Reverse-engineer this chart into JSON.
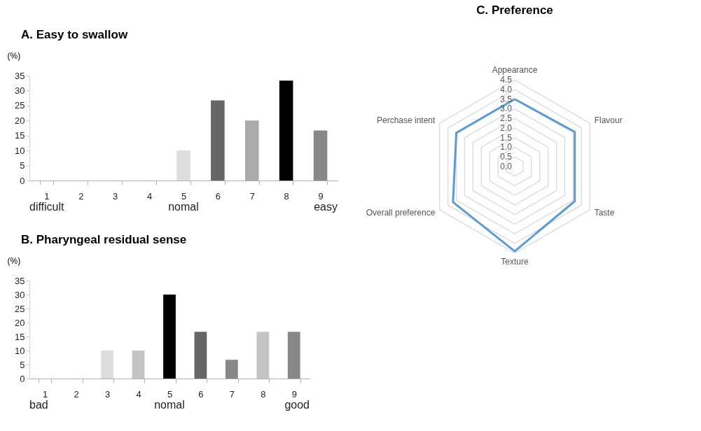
{
  "chart_data": [
    {
      "type": "bar",
      "title": "A. Easy to swallow",
      "ylabel": "(%)",
      "categories": [
        "1",
        "2",
        "3",
        "4",
        "5",
        "6",
        "7",
        "8",
        "9"
      ],
      "values": [
        0,
        0,
        0,
        0,
        10,
        26.7,
        20,
        33.3,
        16.7
      ],
      "colors": [
        "#cccccc",
        "#cccccc",
        "#cccccc",
        "#cccccc",
        "#dddddd",
        "#666666",
        "#aaaaaa",
        "#000000",
        "#888888"
      ],
      "ylim": [
        0,
        35
      ],
      "yticks": [
        0,
        5,
        10,
        15,
        20,
        25,
        30,
        35
      ],
      "annotations": [
        "difficult",
        "nomal",
        "easy"
      ]
    },
    {
      "type": "bar",
      "title": "B. Pharyngeal residual sense",
      "ylabel": "(%)",
      "categories": [
        "1",
        "2",
        "3",
        "4",
        "5",
        "6",
        "7",
        "8",
        "9"
      ],
      "values": [
        0,
        0,
        10,
        10,
        30,
        16.7,
        6.7,
        16.7,
        16.7
      ],
      "colors": [
        "#cccccc",
        "#cccccc",
        "#dddddd",
        "#c4c4c4",
        "#000000",
        "#666666",
        "#888888",
        "#c4c4c4",
        "#888888"
      ],
      "ylim": [
        0,
        35
      ],
      "yticks": [
        0,
        5,
        10,
        15,
        20,
        25,
        30,
        35
      ],
      "annotations": [
        "bad",
        "nomal",
        "good"
      ]
    },
    {
      "type": "radar",
      "title": "C. Preference",
      "categories": [
        "Appearance",
        "Flavour",
        "Taste",
        "Texture",
        "Overall preference",
        "Perchase intent"
      ],
      "series": [
        {
          "color": "#5b9bd5",
          "values": [
            3.5,
            3.6,
            3.6,
            4.4,
            3.7,
            3.5
          ]
        }
      ],
      "ylim": [
        0,
        4.5
      ],
      "yticks": [
        {
          "value": 0,
          "label": "0.0"
        },
        0.5,
        {
          "value": 1,
          "label": "1.0"
        },
        1.5,
        {
          "value": 2,
          "label": "2.0"
        },
        2.5,
        {
          "value": 3,
          "label": "3.0"
        },
        3.5,
        {
          "value": 4,
          "label": "4.0"
        },
        4.5
      ],
      "grid": true
    }
  ]
}
